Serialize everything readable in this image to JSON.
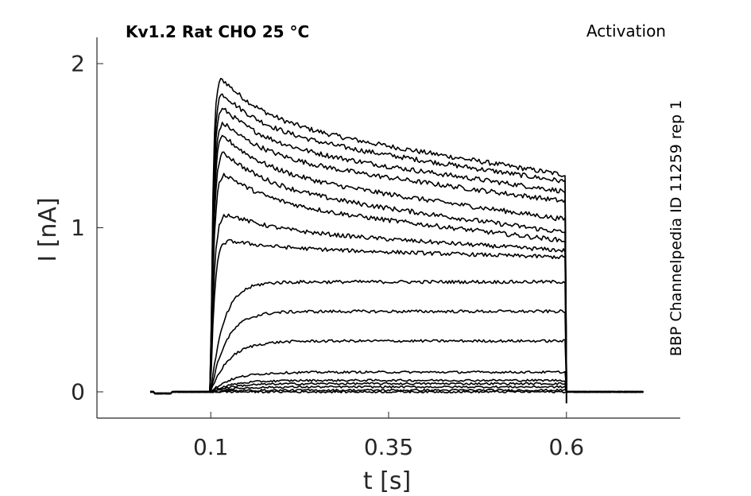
{
  "chart_data": {
    "type": "line",
    "title": "Kv1.2  Rat  CHO  25 °C",
    "annotation_right": "Activation",
    "side_label": "BBP Channelpedia ID 11259 rep 1",
    "xlabel": "t [s]",
    "ylabel": "I [nA]",
    "xlim": [
      -0.06,
      0.76
    ],
    "ylim": [
      -0.16,
      2.16
    ],
    "xticks": [
      0.1,
      0.35,
      0.6
    ],
    "xtick_labels": [
      "0.1",
      "0.35",
      "0.6"
    ],
    "yticks": [
      0,
      1,
      2
    ],
    "ytick_labels": [
      "0",
      "1",
      "2"
    ],
    "grid": false,
    "legend": "none",
    "line_color": "#000000",
    "stimulus": {
      "onset": 0.1,
      "offset": 0.6,
      "t_start": 0.015,
      "t_end": 0.71
    },
    "series_points": [
      "t",
      "peak",
      "end"
    ],
    "series": [
      {
        "peak": 1.93,
        "end": 1.32
      },
      {
        "peak": 1.84,
        "end": 1.28
      },
      {
        "peak": 1.75,
        "end": 1.22
      },
      {
        "peak": 1.66,
        "end": 1.16
      },
      {
        "peak": 1.58,
        "end": 1.05
      },
      {
        "peak": 1.48,
        "end": 0.97
      },
      {
        "peak": 1.35,
        "end": 0.92
      },
      {
        "peak": 1.1,
        "end": 0.86
      },
      {
        "peak": 0.93,
        "end": 0.82
      },
      {
        "peak": 0.68,
        "end": 0.67
      },
      {
        "peak": 0.5,
        "end": 0.49
      },
      {
        "peak": 0.32,
        "end": 0.31
      },
      {
        "peak": 0.12,
        "end": 0.12
      },
      {
        "peak": 0.07,
        "end": 0.07
      },
      {
        "peak": 0.05,
        "end": 0.05
      },
      {
        "peak": 0.03,
        "end": 0.03
      },
      {
        "peak": 0.01,
        "end": 0.01
      },
      {
        "peak": 0.0,
        "end": 0.0
      }
    ]
  }
}
